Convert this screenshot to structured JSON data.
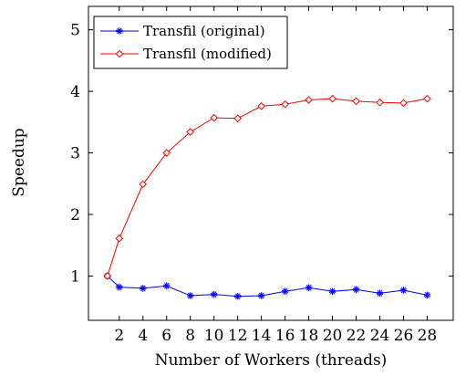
{
  "chart_data": {
    "type": "line",
    "title": "",
    "xlabel": "Number of Workers (threads)",
    "ylabel": "Speedup",
    "x": [
      1,
      2,
      4,
      6,
      8,
      10,
      12,
      14,
      16,
      18,
      20,
      22,
      24,
      26,
      28
    ],
    "x_ticks": [
      2,
      4,
      6,
      8,
      10,
      12,
      14,
      16,
      18,
      20,
      22,
      24,
      26,
      28
    ],
    "y_ticks": [
      1,
      2,
      3,
      4,
      5
    ],
    "xlim": [
      -0.6,
      30.2
    ],
    "ylim": [
      0.28,
      5.38
    ],
    "grid": false,
    "legend_position": "top-left",
    "series": [
      {
        "name": "Transfil (original)",
        "color": "#0000ff",
        "marker": "star",
        "values": [
          1.0,
          0.82,
          0.8,
          0.84,
          0.68,
          0.7,
          0.67,
          0.68,
          0.75,
          0.81,
          0.75,
          0.78,
          0.72,
          0.77,
          0.69
        ]
      },
      {
        "name": "Transfil (modified)",
        "color": "#ff0000",
        "marker": "diamond",
        "values": [
          1.0,
          1.61,
          2.49,
          3.0,
          3.34,
          3.57,
          3.56,
          3.76,
          3.79,
          3.86,
          3.88,
          3.84,
          3.82,
          3.81,
          3.88
        ]
      }
    ]
  }
}
